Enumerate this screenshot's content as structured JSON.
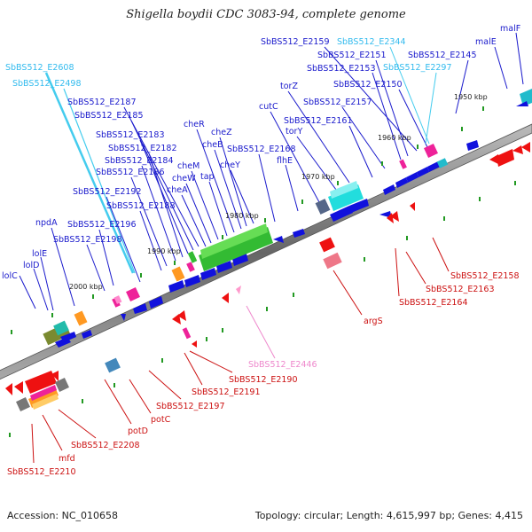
{
  "title": "Shigella boydii CDC 3083-94, complete genome",
  "footer": {
    "accession": "Accession: NC_010658",
    "topology": "Topology: circular; Length: 4,615,997 bp; Genes: 4,415"
  },
  "colors": {
    "forward_label": "#1a1acc",
    "reverse_label": "#cc1111",
    "rna_label": "#33bbee",
    "pseudo_label": "#ee88cc",
    "backbone": "#777777"
  },
  "ticks": [
    "2000 kbp",
    "1990 kbp",
    "1980 kbp",
    "1970 kbp",
    "1960 kbp",
    "1950 kbp"
  ],
  "forward_labels": [
    "lolC",
    "lolD",
    "lolE",
    "npdA",
    "SbBS512_E2198",
    "SbBS512_E2196",
    "SbBS512_E2192",
    "SbBS512_E2188",
    "SbBS512_E2186",
    "SbBS512_E2184",
    "SbBS512_E2182",
    "SbBS512_E2183",
    "SbBS512_E2185",
    "SbBS512_E2187",
    "cheA",
    "cheW",
    "cheM",
    "cheR",
    "tap",
    "cheB",
    "cheZ",
    "cheY",
    "SbBS512_E2168",
    "flhE",
    "cutC",
    "torY",
    "torZ",
    "SbBS512_E2161",
    "SbBS512_E2157",
    "SbBS512_E2153",
    "SbBS512_E2151",
    "SbBS512_E2159",
    "SbBS512_E2150",
    "SbBS512_E2145",
    "malE",
    "malF"
  ],
  "rna_labels": [
    "SbBS512_E2608",
    "SbBS512_E2498",
    "SbBS512_E2344",
    "SbBS512_E2297"
  ],
  "pseudo_labels": [
    "SbBS512_E2446"
  ],
  "reverse_labels": [
    "SbBS512_E2210",
    "mfd",
    "SbBS512_E2208",
    "potD",
    "potC",
    "SbBS512_E2197",
    "SbBS512_E2191",
    "SbBS512_E2190",
    "argS",
    "SbBS512_E2164",
    "SbBS512_E2163",
    "SbBS512_E2158"
  ]
}
